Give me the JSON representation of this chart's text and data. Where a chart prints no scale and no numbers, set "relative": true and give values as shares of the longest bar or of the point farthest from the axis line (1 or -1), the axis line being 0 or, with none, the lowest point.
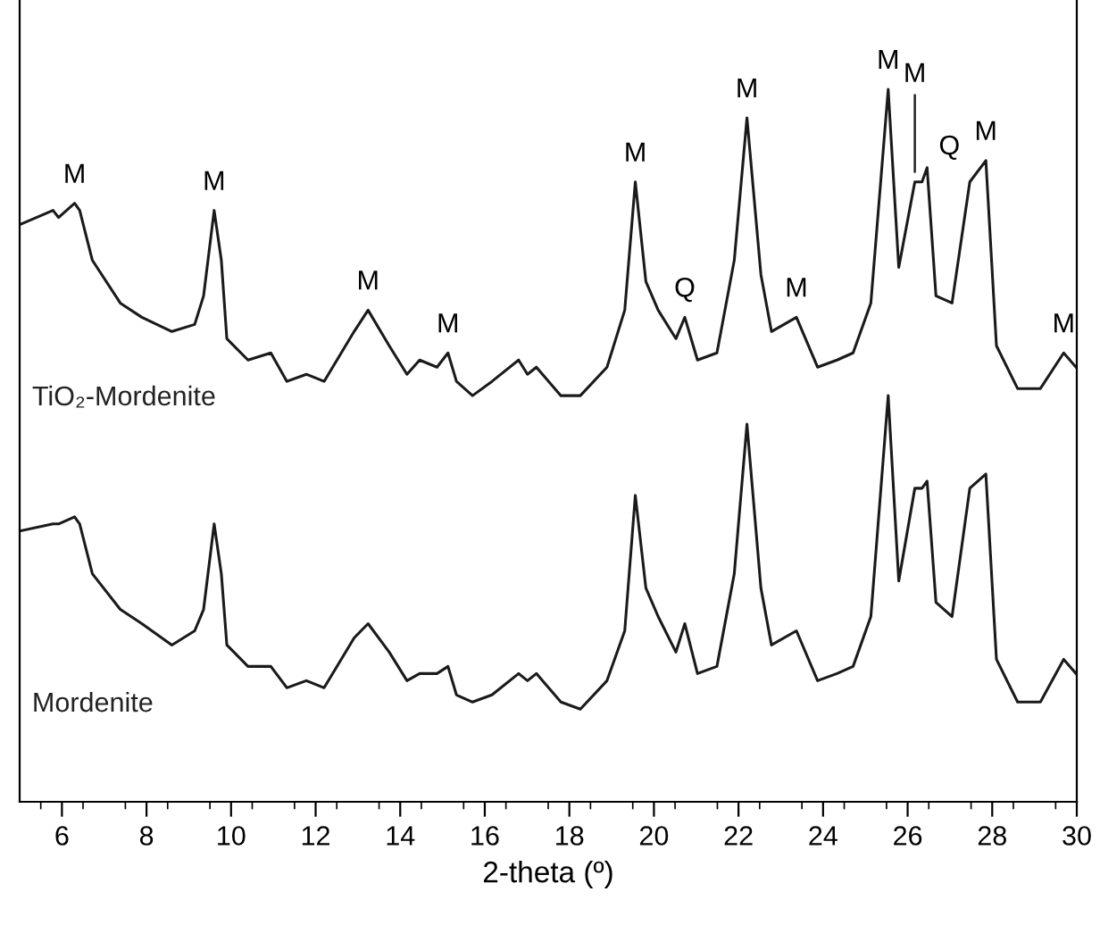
{
  "chart_data": {
    "type": "line",
    "relative": true,
    "xlabel": "2-theta (º)",
    "x": [
      5.0,
      5.79,
      5.92,
      6.3,
      6.42,
      6.72,
      7.38,
      7.89,
      8.6,
      9.14,
      9.35,
      9.6,
      9.77,
      9.9,
      10.4,
      10.94,
      11.32,
      11.78,
      12.2,
      12.91,
      13.24,
      13.74,
      14.16,
      14.46,
      14.87,
      15.13,
      15.33,
      15.71,
      16.17,
      16.8,
      17.01,
      17.22,
      17.8,
      18.26,
      18.89,
      19.31,
      19.56,
      19.81,
      20.1,
      20.52,
      20.73,
      21.03,
      21.49,
      21.9,
      22.2,
      22.53,
      22.78,
      23.37,
      23.87,
      24.33,
      24.71,
      25.13,
      25.54,
      25.79,
      26.17,
      26.34,
      26.46,
      26.67,
      27.05,
      27.47,
      27.85,
      28.1,
      28.6,
      29.14,
      29.69,
      29.98
    ],
    "xlim": [
      5,
      30
    ],
    "xticks": [
      6,
      8,
      10,
      12,
      14,
      16,
      18,
      20,
      22,
      24,
      26,
      28,
      30
    ],
    "series": [
      {
        "name": "TiO₂-Mordenite",
        "color": "#1a1a1a",
        "values": [
          0.81,
          0.83,
          0.82,
          0.84,
          0.83,
          0.76,
          0.7,
          0.68,
          0.66,
          0.67,
          0.71,
          0.83,
          0.76,
          0.65,
          0.62,
          0.63,
          0.59,
          0.6,
          0.59,
          0.66,
          0.69,
          0.64,
          0.6,
          0.62,
          0.61,
          0.63,
          0.59,
          0.57,
          0.59,
          0.62,
          0.6,
          0.61,
          0.57,
          0.57,
          0.61,
          0.69,
          0.87,
          0.73,
          0.69,
          0.65,
          0.68,
          0.62,
          0.63,
          0.76,
          0.96,
          0.74,
          0.66,
          0.68,
          0.61,
          0.62,
          0.63,
          0.7,
          1.0,
          0.75,
          0.87,
          0.87,
          0.89,
          0.71,
          0.7,
          0.87,
          0.9,
          0.64,
          0.58,
          0.58,
          0.63,
          0.61
        ]
      },
      {
        "name": "Mordenite",
        "color": "#1a1a1a",
        "values": [
          0.38,
          0.39,
          0.39,
          0.4,
          0.39,
          0.32,
          0.27,
          0.25,
          0.22,
          0.24,
          0.27,
          0.39,
          0.32,
          0.22,
          0.19,
          0.19,
          0.16,
          0.17,
          0.16,
          0.23,
          0.25,
          0.21,
          0.17,
          0.18,
          0.18,
          0.19,
          0.15,
          0.14,
          0.15,
          0.18,
          0.17,
          0.18,
          0.14,
          0.13,
          0.17,
          0.24,
          0.43,
          0.3,
          0.26,
          0.21,
          0.25,
          0.18,
          0.19,
          0.32,
          0.53,
          0.3,
          0.22,
          0.24,
          0.17,
          0.18,
          0.19,
          0.26,
          0.57,
          0.31,
          0.44,
          0.44,
          0.45,
          0.28,
          0.26,
          0.44,
          0.46,
          0.2,
          0.14,
          0.14,
          0.2,
          0.18
        ]
      }
    ],
    "annotations": [
      {
        "text": "M",
        "x": 6.3,
        "y": 0.84
      },
      {
        "text": "M",
        "x": 9.6,
        "y": 0.83
      },
      {
        "text": "M",
        "x": 13.24,
        "y": 0.69
      },
      {
        "text": "M",
        "x": 15.13,
        "y": 0.63
      },
      {
        "text": "M",
        "x": 19.56,
        "y": 0.87
      },
      {
        "text": "Q",
        "x": 20.73,
        "y": 0.68
      },
      {
        "text": "M",
        "x": 22.2,
        "y": 0.96
      },
      {
        "text": "M",
        "x": 23.37,
        "y": 0.68
      },
      {
        "text": "M",
        "x": 25.54,
        "y": 1.0
      },
      {
        "text": "M",
        "x": 26.17,
        "y": 0.87
      },
      {
        "text": "Q",
        "x": 26.46,
        "y": 0.89
      },
      {
        "text": "M",
        "x": 27.85,
        "y": 0.9
      },
      {
        "text": "M",
        "x": 29.69,
        "y": 0.63
      }
    ],
    "line_style": "solid",
    "marker": "none",
    "grid": false,
    "legend": false
  }
}
